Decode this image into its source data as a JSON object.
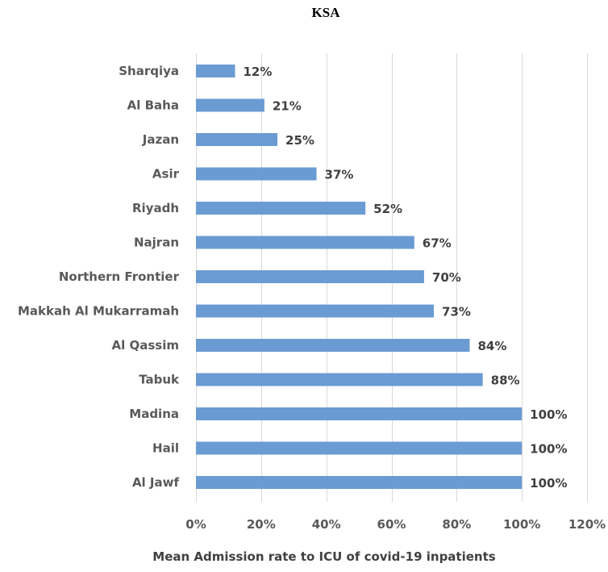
{
  "chart_data": {
    "type": "bar",
    "orientation": "horizontal",
    "title": "KSA",
    "xlabel": "Mean Admission rate to ICU of covid-19 inpatients",
    "ylabel": "",
    "categories": [
      "Sharqiya",
      "Al Baha",
      "Jazan",
      "Asir",
      "Riyadh",
      "Najran",
      "Northern Frontier",
      "Makkah Al Mukarramah",
      "Al Qassim",
      "Tabuk",
      "Madina",
      "Hail",
      "Al Jawf"
    ],
    "values": [
      12,
      21,
      25,
      37,
      52,
      67,
      70,
      73,
      84,
      88,
      100,
      100,
      100
    ],
    "data_labels": [
      "12%",
      "21%",
      "25%",
      "37%",
      "52%",
      "67%",
      "70%",
      "73%",
      "84%",
      "88%",
      "100%",
      "100%",
      "100%"
    ],
    "xlim": [
      0,
      120
    ],
    "x_ticks": [
      0,
      20,
      40,
      60,
      80,
      100,
      120
    ],
    "x_tick_labels": [
      "0%",
      "20%",
      "40%",
      "60%",
      "80%",
      "100%",
      "120%"
    ],
    "grid": "vertical",
    "legend": "none",
    "bar_color": "#6a9bd3"
  }
}
